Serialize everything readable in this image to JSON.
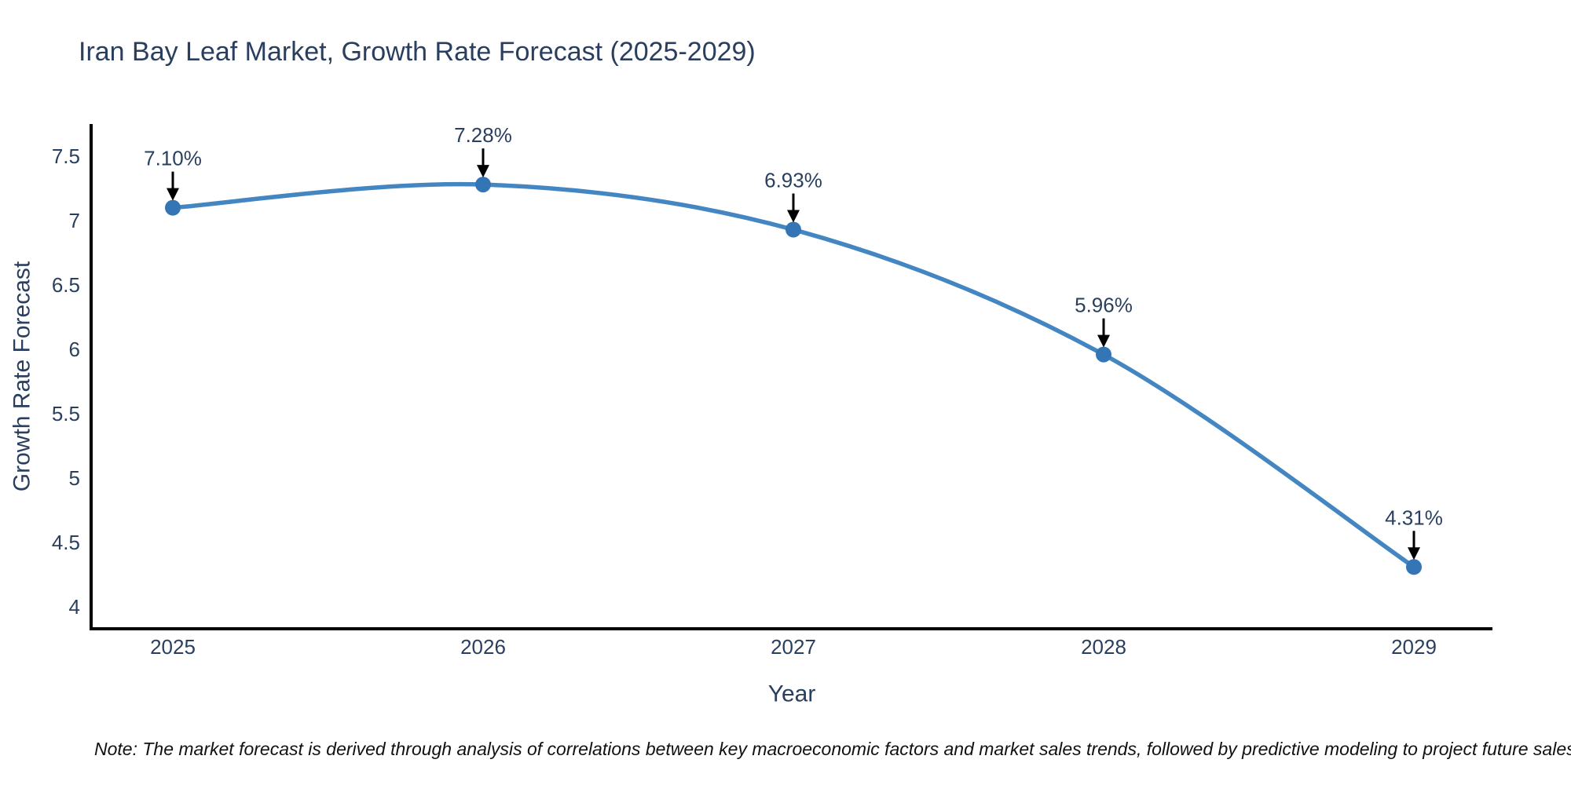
{
  "figure": {
    "title": "Iran Bay Leaf Market, Growth Rate Forecast (2025-2029)",
    "note": "Note: The market forecast is derived through analysis of correlations between key macroeconomic factors and market sales trends, followed by predictive modeling to project future sales"
  },
  "chart_data": {
    "type": "line",
    "title": "Iran Bay Leaf Market, Growth Rate Forecast (2025-2029)",
    "x": [
      "2025",
      "2026",
      "2027",
      "2028",
      "2029"
    ],
    "series": [
      {
        "name": "Growth Rate Forecast",
        "values": [
          7.1,
          7.28,
          6.93,
          5.96,
          4.31
        ]
      }
    ],
    "point_labels": [
      "7.10%",
      "7.28%",
      "6.93%",
      "5.96%",
      "4.31%"
    ],
    "xlabel": "Year",
    "ylabel": "Growth Rate Forecast",
    "yticks": [
      7.5,
      7.0,
      6.5,
      6.0,
      5.5,
      5.0,
      4.5,
      4.0
    ],
    "ylim": [
      3.83,
      7.75
    ],
    "line_shape": "spline",
    "grid": false,
    "legend": "none",
    "annotations": "value labels with black arrows pointing to each data point",
    "colors": {
      "line": "#4386c2",
      "marker": "#3476b5",
      "text": "#2a3f5f",
      "axis": "#000000",
      "arrow": "#000000",
      "background": "#ffffff"
    }
  }
}
